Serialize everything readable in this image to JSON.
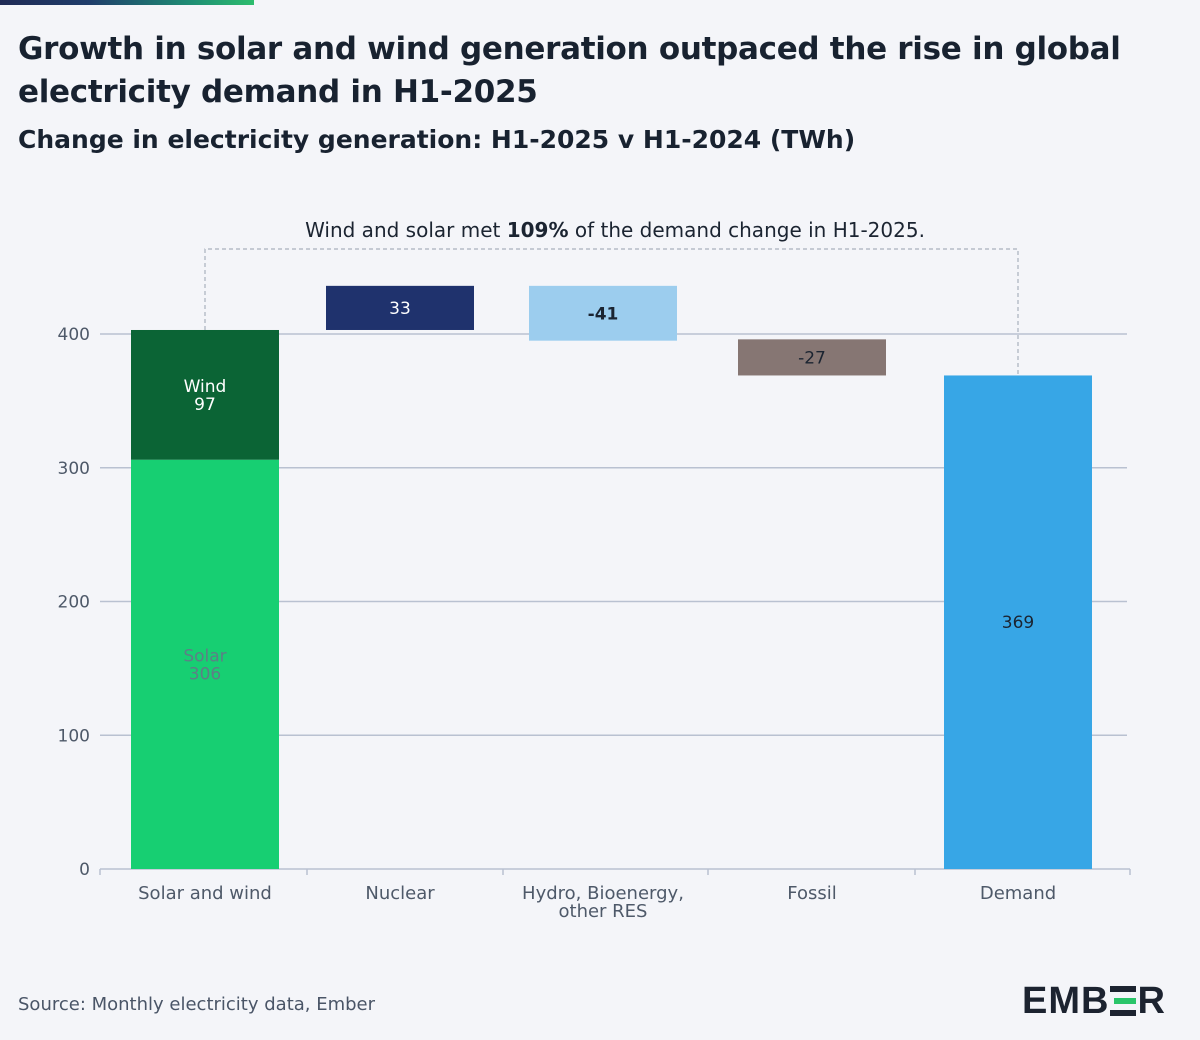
{
  "title": "Growth in solar and wind generation outpaced the rise in global electricity demand in H1-2025",
  "subtitle": "Change in electricity generation: H1-2025 v H1-2024 (TWh)",
  "annotation": {
    "before": "Wind and solar met ",
    "bold": "109%",
    "after": " of the demand change in H1-2025."
  },
  "source": "Source: Monthly electricity data, Ember",
  "logo": {
    "text": "EMBER"
  },
  "colors": {
    "solar": "#17cf72",
    "wind": "#0b6435",
    "nuclear": "#1f326d",
    "hydro": "#9ccdee",
    "fossil": "#867673",
    "demand": "#37a6e6",
    "grid": "#b9c1d1"
  },
  "chart_data": {
    "type": "bar",
    "subtype": "waterfall",
    "categories": [
      "Solar and wind",
      "Nuclear",
      "Hydro, Bioenergy,\nother RES",
      "Fossil",
      "Demand"
    ],
    "ylim": [
      0,
      450
    ],
    "yticks": [
      0,
      100,
      200,
      300,
      400
    ],
    "grid": true,
    "bars": [
      {
        "category": "Solar and wind",
        "segments": [
          {
            "name": "Solar",
            "value": 306,
            "base": 0,
            "color_key": "solar",
            "label": "Solar\n306",
            "label_color": "#5d7f86"
          },
          {
            "name": "Wind",
            "value": 97,
            "base": 306,
            "color_key": "wind",
            "label": "Wind\n97",
            "label_color": "#ffffff"
          }
        ]
      },
      {
        "category": "Nuclear",
        "segments": [
          {
            "value": 33,
            "base": 403,
            "color_key": "nuclear",
            "label": "33",
            "label_color": "#ffffff"
          }
        ]
      },
      {
        "category": "Hydro, Bioenergy,\nother RES",
        "segments": [
          {
            "value": -41,
            "base": 436,
            "color_key": "hydro",
            "label": "-41",
            "label_color": "#1b2431",
            "label_bold": true
          }
        ]
      },
      {
        "category": "Fossil",
        "segments": [
          {
            "value": -27,
            "base": 396,
            "color_key": "fossil",
            "label": "-27",
            "label_color": "#1b2431"
          }
        ]
      },
      {
        "category": "Demand",
        "segments": [
          {
            "value": 369,
            "base": 0,
            "color_key": "demand",
            "label": "369",
            "label_color": "#1b2431"
          }
        ]
      }
    ]
  }
}
